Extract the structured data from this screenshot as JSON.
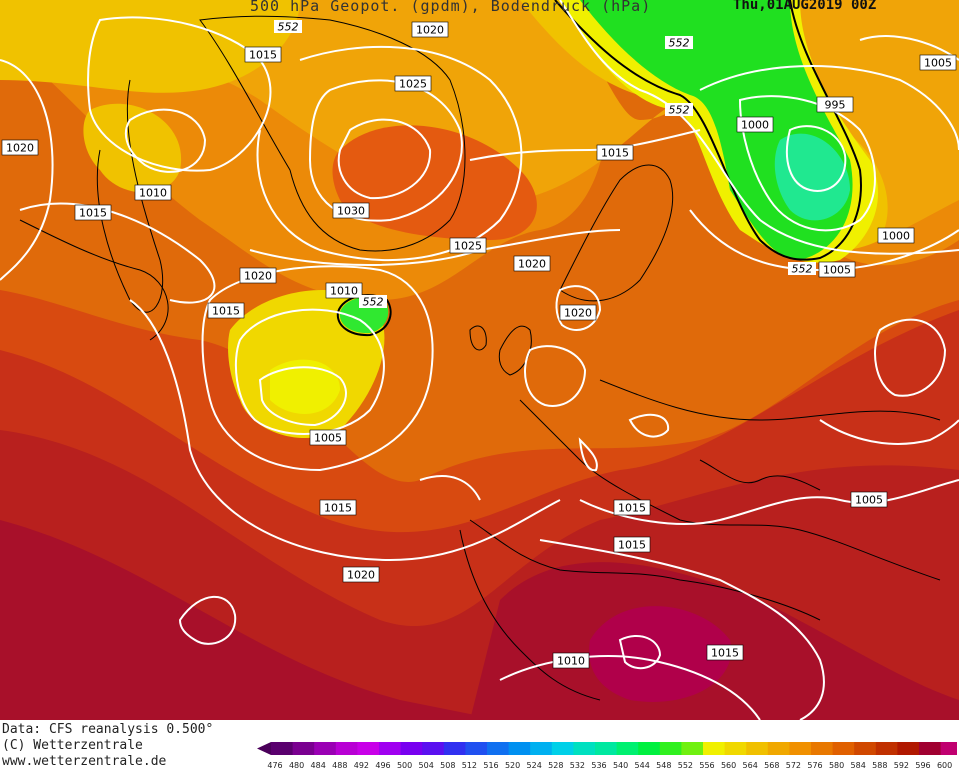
{
  "header": {
    "title": "500 hPa Geopot. (gpdm), Bodendruck (hPa)",
    "valid_time": "Thu,01AUG2019 00Z"
  },
  "footer": {
    "data_source": "Data: CFS reanalysis 0.500°",
    "copyright": "(C) Wetterzentrale",
    "website": "www.wetterzentrale.de"
  },
  "colorbar": {
    "values": [
      476,
      480,
      484,
      488,
      492,
      496,
      500,
      504,
      508,
      512,
      516,
      520,
      524,
      528,
      532,
      536,
      540,
      544,
      548,
      552,
      556,
      560,
      564,
      568,
      572,
      576,
      580,
      584,
      588,
      592,
      596,
      600
    ],
    "colors": [
      "#5a006e",
      "#7a0090",
      "#9a00b4",
      "#b800d4",
      "#c800e8",
      "#a000f0",
      "#7800f0",
      "#5a10f0",
      "#3030f0",
      "#2050f0",
      "#1070f0",
      "#0090f0",
      "#00b0f0",
      "#00d0e8",
      "#00e0c0",
      "#00e8a0",
      "#00f070",
      "#00f040",
      "#30f020",
      "#70f010",
      "#f0f000",
      "#f0d800",
      "#f0c000",
      "#f0a800",
      "#f09000",
      "#e87800",
      "#e06000",
      "#d04800",
      "#c03000",
      "#b01800",
      "#a00030",
      "#c00070"
    ]
  },
  "isobar_labels": [
    "1020",
    "1015",
    "1005",
    "1025",
    "995",
    "1000",
    "1030",
    "1010",
    "1015",
    "1020",
    "1025",
    "1020",
    "1015",
    "1000",
    "1005",
    "1010",
    "1020",
    "1005",
    "1015",
    "1020",
    "1015",
    "1015",
    "1015",
    "1010",
    "1015",
    "1005",
    "1020"
  ],
  "geopotential_labels": [
    "552",
    "552",
    "552",
    "552",
    "552"
  ],
  "colors": {
    "land": "#000000",
    "isobar": "#ffffff",
    "contour_552": "#000000"
  }
}
